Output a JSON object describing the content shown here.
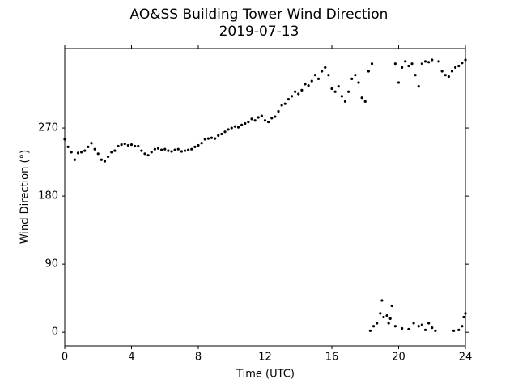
{
  "chart_data": {
    "type": "scatter",
    "title": "AO&SS Building Tower Wind Direction",
    "subtitle": "2019-07-13",
    "x_label": "Time (UTC)",
    "y_label": "Wind Direction (°)",
    "color": "#000000",
    "xlim": [
      0,
      24
    ],
    "xticks": [
      0,
      4,
      8,
      12,
      16,
      20,
      24
    ],
    "ylim": [
      -18,
      375
    ],
    "yticks": [
      0,
      90,
      180,
      270
    ],
    "x": [
      0,
      0.2,
      0.4,
      0.6,
      0.8,
      1.0,
      1.2,
      1.4,
      1.6,
      1.8,
      2.0,
      2.2,
      2.4,
      2.6,
      2.8,
      3.0,
      3.2,
      3.4,
      3.6,
      3.8,
      4.0,
      4.2,
      4.4,
      4.6,
      4.8,
      5.0,
      5.2,
      5.4,
      5.6,
      5.8,
      6.0,
      6.2,
      6.4,
      6.6,
      6.8,
      7.0,
      7.2,
      7.4,
      7.6,
      7.8,
      8.0,
      8.2,
      8.4,
      8.6,
      8.8,
      9.0,
      9.2,
      9.4,
      9.6,
      9.8,
      10.0,
      10.2,
      10.4,
      10.6,
      10.8,
      11.0,
      11.2,
      11.4,
      11.6,
      11.8,
      12.0,
      12.2,
      12.4,
      12.6,
      12.8,
      13.0,
      13.2,
      13.4,
      13.6,
      13.8,
      14.0,
      14.2,
      14.4,
      14.6,
      14.8,
      15.0,
      15.2,
      15.4,
      15.6,
      15.8,
      16.0,
      16.2,
      16.4,
      16.6,
      16.8,
      17.0,
      17.2,
      17.4,
      17.6,
      17.8,
      18.0,
      18.2,
      18.4,
      19.8,
      20.0,
      20.2,
      20.4,
      20.6,
      20.8,
      21.0,
      21.2,
      21.4,
      21.6,
      21.8,
      22.0,
      22.4,
      22.6,
      22.8,
      23.0,
      23.2,
      23.4,
      23.6,
      23.8,
      24.0,
      18.3,
      18.5,
      18.7,
      18.9,
      19.0,
      19.1,
      19.3,
      19.4,
      19.5,
      19.6,
      19.8,
      20.2,
      20.6,
      20.9,
      21.2,
      21.4,
      21.6,
      21.8,
      22.0,
      22.2,
      23.3,
      23.6,
      23.8,
      23.9,
      24.0
    ],
    "values": [
      255,
      245,
      238,
      228,
      237,
      238,
      240,
      245,
      250,
      242,
      236,
      228,
      226,
      232,
      238,
      240,
      246,
      248,
      249,
      247,
      248,
      246,
      246,
      240,
      236,
      234,
      238,
      242,
      243,
      241,
      242,
      240,
      239,
      241,
      242,
      239,
      240,
      241,
      242,
      245,
      247,
      250,
      255,
      256,
      257,
      256,
      260,
      262,
      265,
      268,
      270,
      272,
      271,
      274,
      276,
      278,
      282,
      280,
      284,
      286,
      280,
      278,
      283,
      285,
      292,
      300,
      302,
      308,
      312,
      318,
      315,
      320,
      328,
      326,
      332,
      340,
      335,
      345,
      350,
      340,
      322,
      318,
      325,
      312,
      305,
      318,
      335,
      340,
      330,
      310,
      305,
      345,
      355,
      355,
      330,
      350,
      358,
      352,
      355,
      340,
      325,
      355,
      358,
      357,
      360,
      358,
      345,
      340,
      338,
      345,
      350,
      352,
      356,
      360,
      2,
      8,
      12,
      25,
      42,
      20,
      22,
      12,
      18,
      35,
      8,
      5,
      4,
      12,
      8,
      10,
      3,
      12,
      6,
      2,
      2,
      3,
      8,
      20,
      25
    ]
  }
}
